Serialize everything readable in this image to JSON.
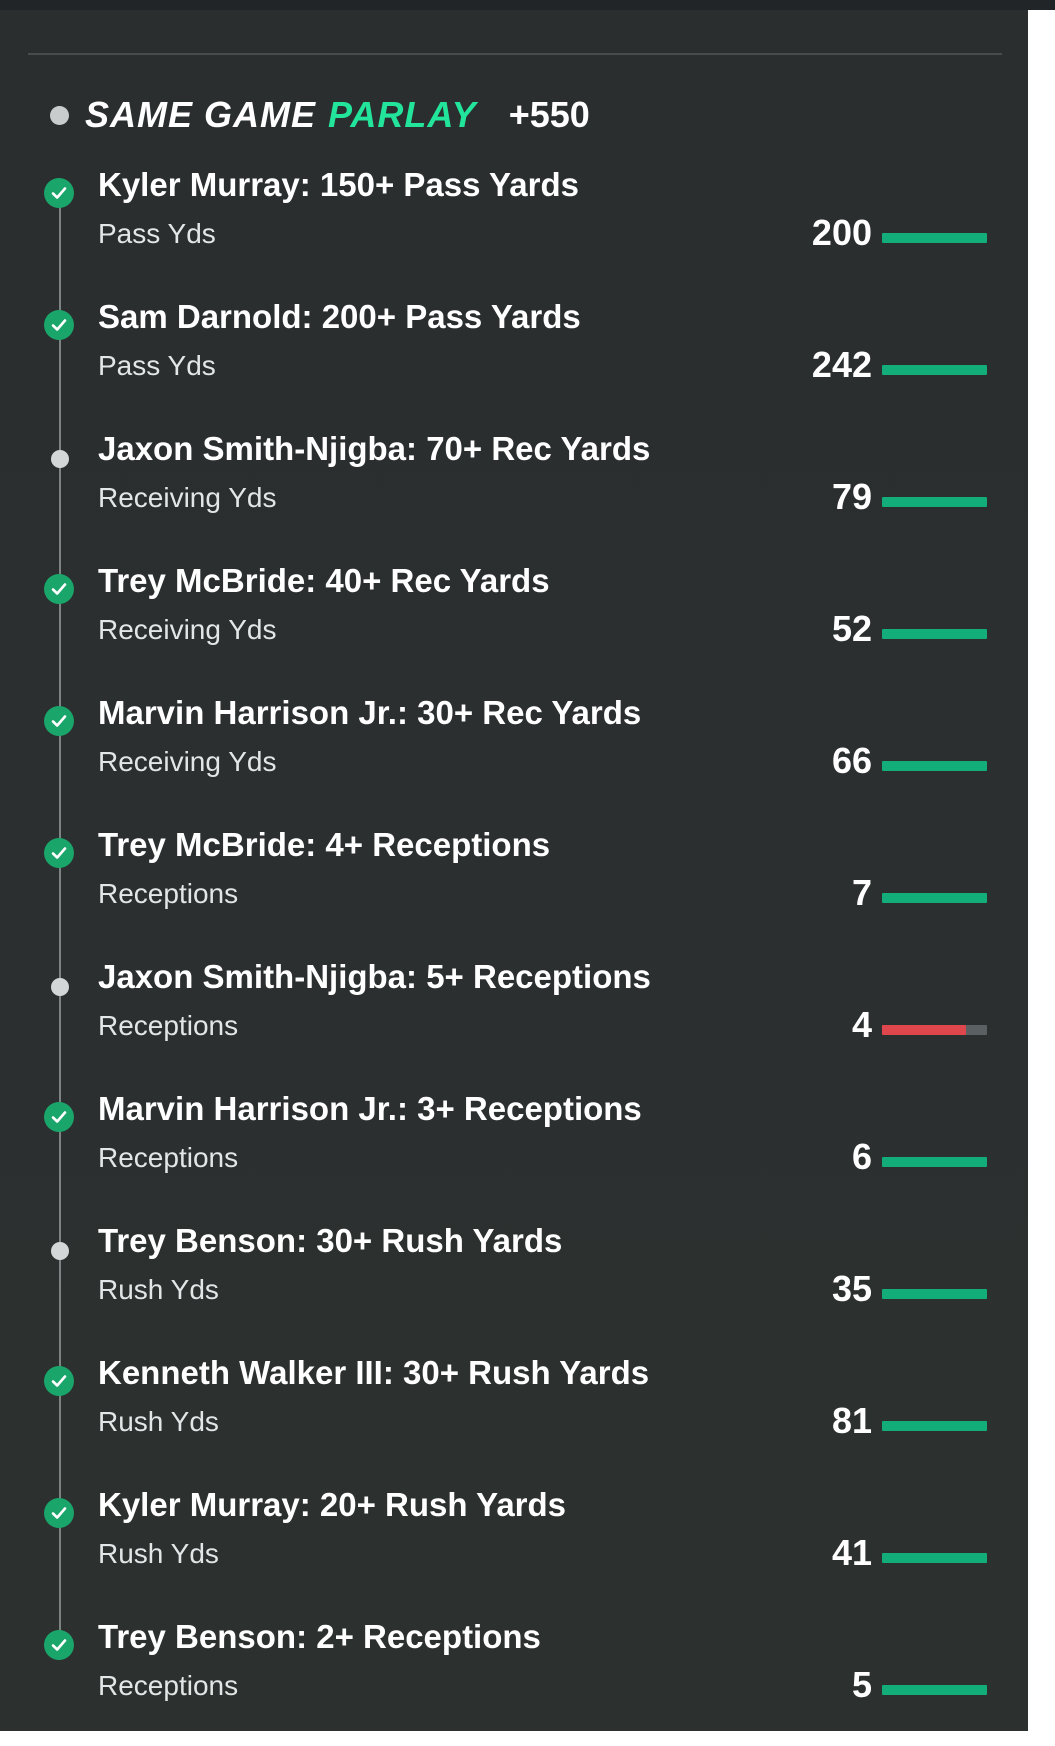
{
  "parlay": {
    "title_part1": "SAME GAME",
    "title_part2": "PARLAY",
    "odds": "+550"
  },
  "colors": {
    "brand_green": "#22e59b",
    "check_green": "#1aa56b",
    "bar_green": "#12ad79",
    "bar_red": "#e0474c",
    "bar_track": "#5b6062",
    "panel_bg": "#2b2f30"
  },
  "legs": [
    {
      "title": "Kyler Murray: 150+ Pass Yards",
      "stat": "Pass Yds",
      "value": "200",
      "status": "hit",
      "progress": 1.0,
      "bar_color": "green"
    },
    {
      "title": "Sam Darnold: 200+ Pass Yards",
      "stat": "Pass Yds",
      "value": "242",
      "status": "hit",
      "progress": 1.0,
      "bar_color": "green"
    },
    {
      "title": "Jaxon Smith-Njigba: 70+ Rec Yards",
      "stat": "Receiving Yds",
      "value": "79",
      "status": "pending",
      "progress": 1.0,
      "bar_color": "green"
    },
    {
      "title": "Trey McBride: 40+ Rec Yards",
      "stat": "Receiving Yds",
      "value": "52",
      "status": "hit",
      "progress": 1.0,
      "bar_color": "green"
    },
    {
      "title": "Marvin Harrison Jr.: 30+ Rec Yards",
      "stat": "Receiving Yds",
      "value": "66",
      "status": "hit",
      "progress": 1.0,
      "bar_color": "green"
    },
    {
      "title": "Trey McBride: 4+ Receptions",
      "stat": "Receptions",
      "value": "7",
      "status": "hit",
      "progress": 1.0,
      "bar_color": "green"
    },
    {
      "title": "Jaxon Smith-Njigba: 5+ Receptions",
      "stat": "Receptions",
      "value": "4",
      "status": "pending",
      "progress": 0.8,
      "bar_color": "red"
    },
    {
      "title": "Marvin Harrison Jr.: 3+ Receptions",
      "stat": "Receptions",
      "value": "6",
      "status": "hit",
      "progress": 1.0,
      "bar_color": "green"
    },
    {
      "title": "Trey Benson: 30+ Rush Yards",
      "stat": "Rush Yds",
      "value": "35",
      "status": "pending",
      "progress": 1.0,
      "bar_color": "green"
    },
    {
      "title": "Kenneth Walker III: 30+ Rush Yards",
      "stat": "Rush Yds",
      "value": "81",
      "status": "hit",
      "progress": 1.0,
      "bar_color": "green"
    },
    {
      "title": "Kyler Murray: 20+ Rush Yards",
      "stat": "Rush Yds",
      "value": "41",
      "status": "hit",
      "progress": 1.0,
      "bar_color": "green"
    },
    {
      "title": "Trey Benson: 2+ Receptions",
      "stat": "Receptions",
      "value": "5",
      "status": "hit",
      "progress": 1.0,
      "bar_color": "green"
    }
  ]
}
